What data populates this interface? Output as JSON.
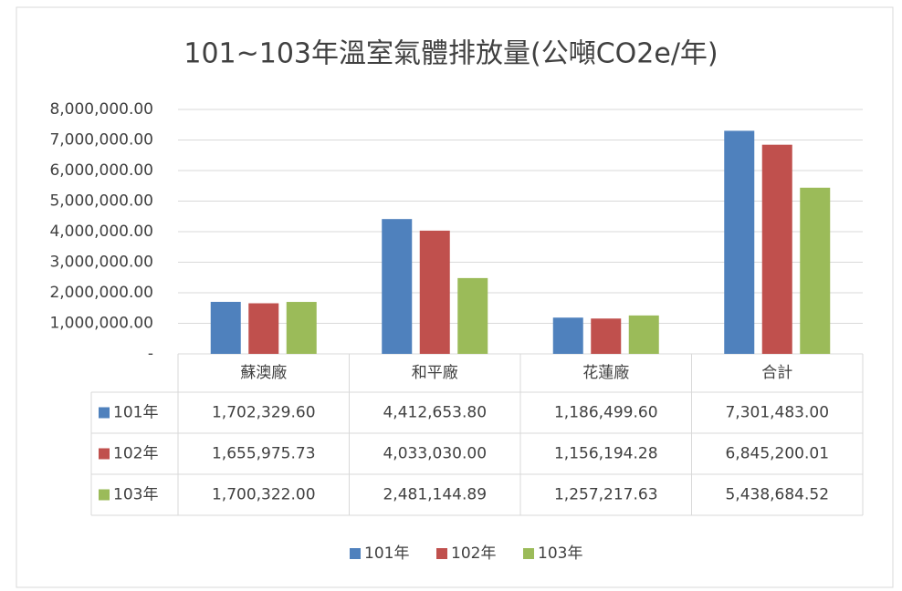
{
  "chart_data": {
    "type": "bar",
    "title": "101~103年溫室氣體排放量(公噸CO2e/年)",
    "categories": [
      "蘇澳廠",
      "和平廠",
      "花蓮廠",
      "合計"
    ],
    "series": [
      {
        "name": "101年",
        "color": "#4f81bd",
        "values": [
          1702329.6,
          4412653.8,
          1186499.6,
          7301483.0
        ],
        "value_labels": [
          "1,702,329.60",
          "4,412,653.80",
          "1,186,499.60",
          "7,301,483.00"
        ]
      },
      {
        "name": "102年",
        "color": "#c0504d",
        "values": [
          1655975.73,
          4033030.0,
          1156194.28,
          6845200.01
        ],
        "value_labels": [
          "1,655,975.73",
          "4,033,030.00",
          "1,156,194.28",
          "6,845,200.01"
        ]
      },
      {
        "name": "103年",
        "color": "#9bbb59",
        "values": [
          1700322.0,
          2481144.89,
          1257217.63,
          5438684.52
        ],
        "value_labels": [
          "1,700,322.00",
          "2,481,144.89",
          "1,257,217.63",
          "5,438,684.52"
        ]
      }
    ],
    "ylim": [
      0,
      8000000
    ],
    "yticks": [
      {
        "value": 0,
        "label": "-"
      },
      {
        "value": 1000000,
        "label": "1,000,000.00"
      },
      {
        "value": 2000000,
        "label": "2,000,000.00"
      },
      {
        "value": 3000000,
        "label": "3,000,000.00"
      },
      {
        "value": 4000000,
        "label": "4,000,000.00"
      },
      {
        "value": 5000000,
        "label": "5,000,000.00"
      },
      {
        "value": 6000000,
        "label": "6,000,000.00"
      },
      {
        "value": 7000000,
        "label": "7,000,000.00"
      },
      {
        "value": 8000000,
        "label": "8,000,000.00"
      }
    ],
    "grid": true,
    "legend": "bottom"
  }
}
